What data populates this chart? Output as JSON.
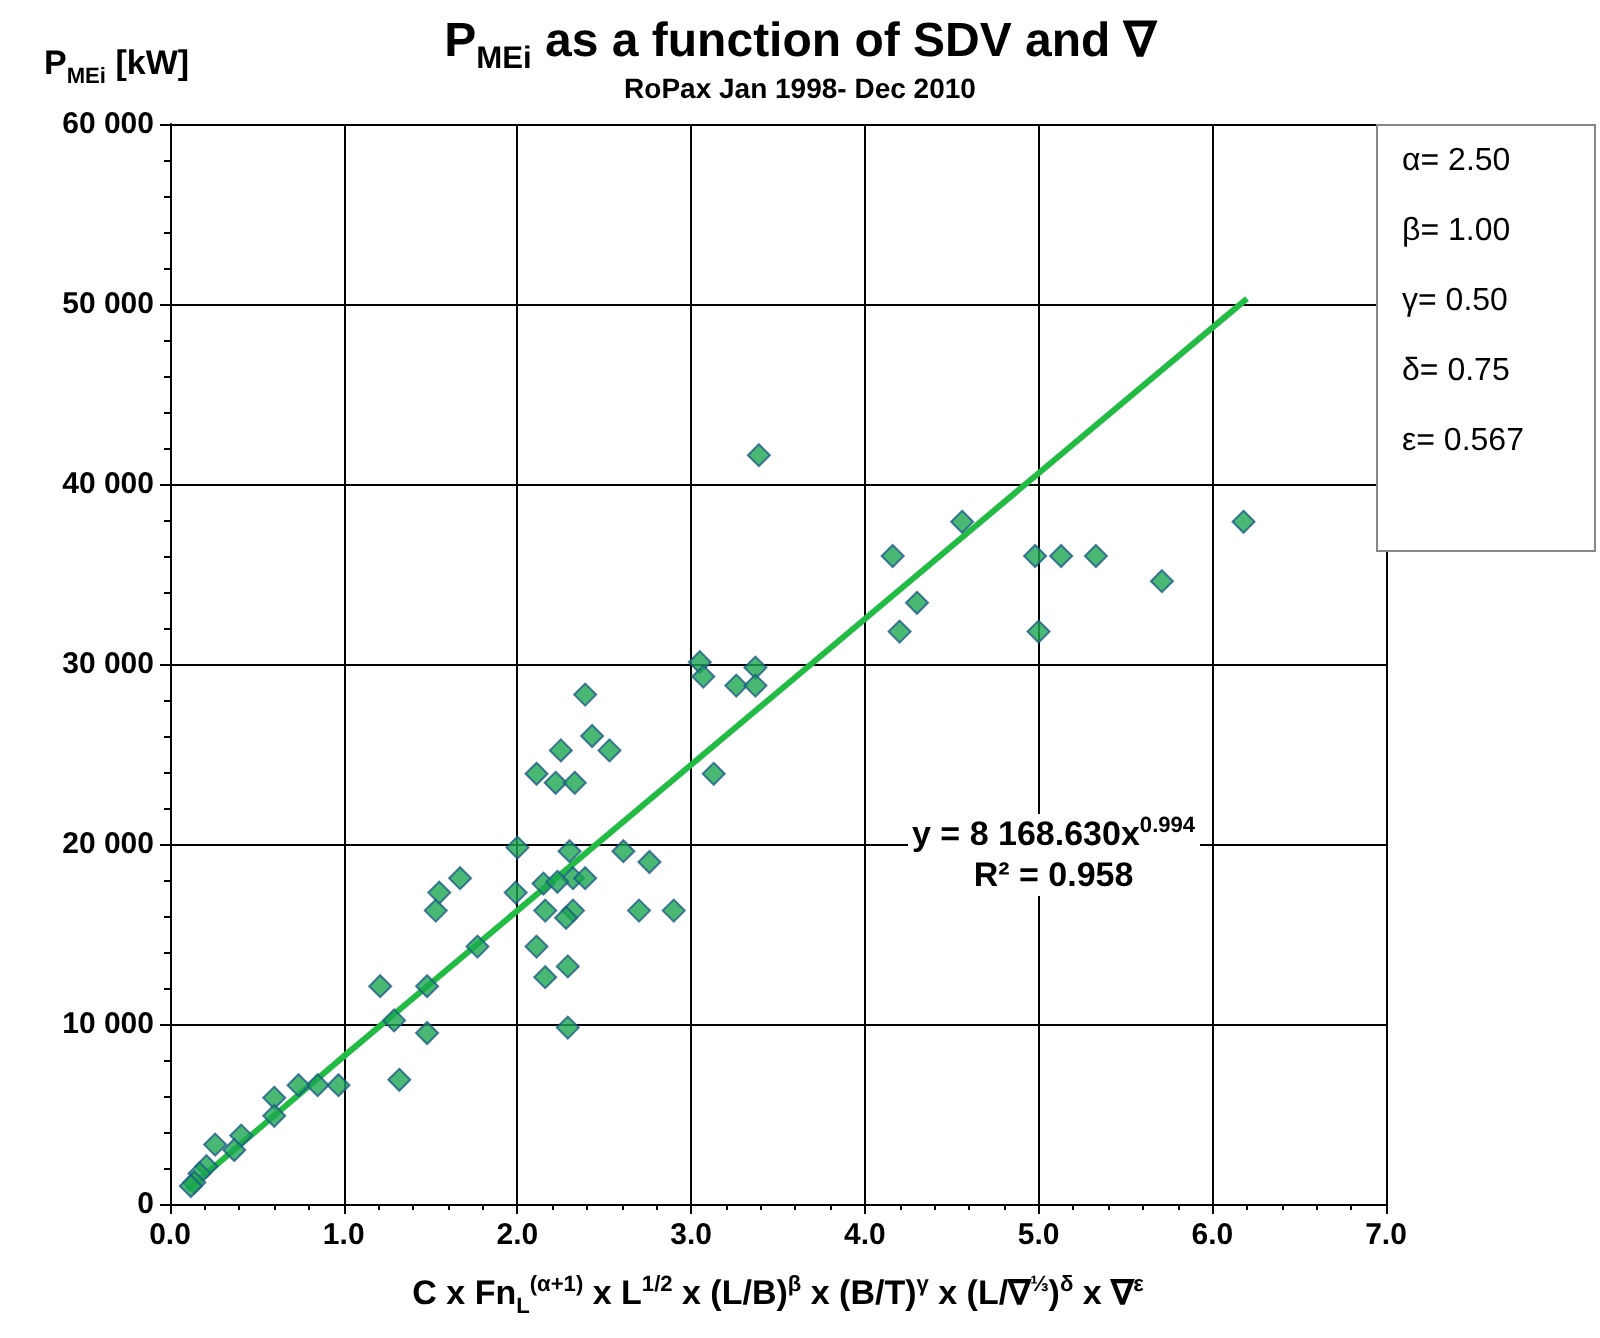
{
  "chart_data": {
    "type": "scatter",
    "title": "P$_{MEi}$ as a function of SDV and ∇",
    "subtitle": "RoPax Jan 1998- Dec 2010",
    "xlabel": "C x Fn$_{L}$$^{(α+1)}$ x L$^{1/2}$ x (L/B)$^{β}$ x (B/T)$^{γ}$ x (L/∇$^{⅓}$)$^{δ}$  x ∇$^{ε}$",
    "ylabel": "P$_{MEi}$ [kW]",
    "xlim": [
      0,
      7
    ],
    "ylim": [
      0,
      60000
    ],
    "xticks": [
      {
        "value": 0,
        "label": "0.0"
      },
      {
        "value": 1,
        "label": "1.0"
      },
      {
        "value": 2,
        "label": "2.0"
      },
      {
        "value": 3,
        "label": "3.0"
      },
      {
        "value": 4,
        "label": "4.0"
      },
      {
        "value": 5,
        "label": "5.0"
      },
      {
        "value": 6,
        "label": "6.0"
      },
      {
        "value": 7,
        "label": "7.0"
      }
    ],
    "yticks": [
      {
        "value": 0,
        "label": "0"
      },
      {
        "value": 10000,
        "label": "10 000"
      },
      {
        "value": 20000,
        "label": "20 000"
      },
      {
        "value": 30000,
        "label": "30 000"
      },
      {
        "value": 40000,
        "label": "40 000"
      },
      {
        "value": 50000,
        "label": "50 000"
      },
      {
        "value": 60000,
        "label": "60 000"
      }
    ],
    "grid": true,
    "annotations": [
      "α= 2.50",
      "β= 1.00",
      "γ= 0.50",
      "δ= 0.75",
      "ε= 0.567",
      "y = 8 168.630x$^{0.994}$",
      "R² = 0.958"
    ],
    "series": [
      {
        "marker": "diamond",
        "color": "#1aa64f",
        "x": [
          3.39,
          3.05,
          3.07,
          3.26,
          3.37,
          3.37,
          4.16,
          4.56,
          4.2,
          4.3,
          4.98,
          5.13,
          5.33,
          5.71,
          5.0,
          6.18,
          2.39,
          2.43,
          2.53,
          2.25,
          2.11,
          2.22,
          2.33,
          3.13,
          2.0,
          2.3,
          2.61,
          2.76,
          1.67,
          1.55,
          1.53,
          1.99,
          2.15,
          2.32,
          2.39,
          2.23,
          2.16,
          2.32,
          2.28,
          2.7,
          2.9,
          1.77,
          2.11,
          2.16,
          2.29,
          1.48,
          1.21,
          1.29,
          1.48,
          2.29,
          1.32,
          0.97,
          0.85,
          0.74,
          0.6,
          0.6,
          0.41,
          0.37,
          0.26,
          0.21,
          0.17,
          0.14,
          0.12
        ],
        "values": [
          41600,
          30100,
          29300,
          28800,
          29800,
          28800,
          36000,
          37900,
          31800,
          33400,
          36000,
          36000,
          36000,
          34600,
          31800,
          37900,
          28300,
          26000,
          25200,
          25200,
          23900,
          23400,
          23400,
          23900,
          19800,
          19600,
          19600,
          19000,
          18100,
          17300,
          16300,
          17300,
          17800,
          18100,
          18100,
          17900,
          16300,
          16300,
          15900,
          16300,
          16300,
          14300,
          14300,
          12600,
          13200,
          12100,
          12100,
          10200,
          9500,
          9800,
          6900,
          6600,
          6600,
          6600,
          5900,
          4900,
          3800,
          3000,
          3300,
          2100,
          1700,
          1200,
          1000
        ]
      },
      {
        "type": "line",
        "marker": "none",
        "line_style": "solid",
        "color": "#22bb44",
        "x": [
          0.1,
          1,
          2,
          3,
          4,
          5,
          6.2
        ],
        "values": [
          800,
          8200,
          16300,
          24400,
          32500,
          40600,
          50300
        ]
      }
    ]
  }
}
